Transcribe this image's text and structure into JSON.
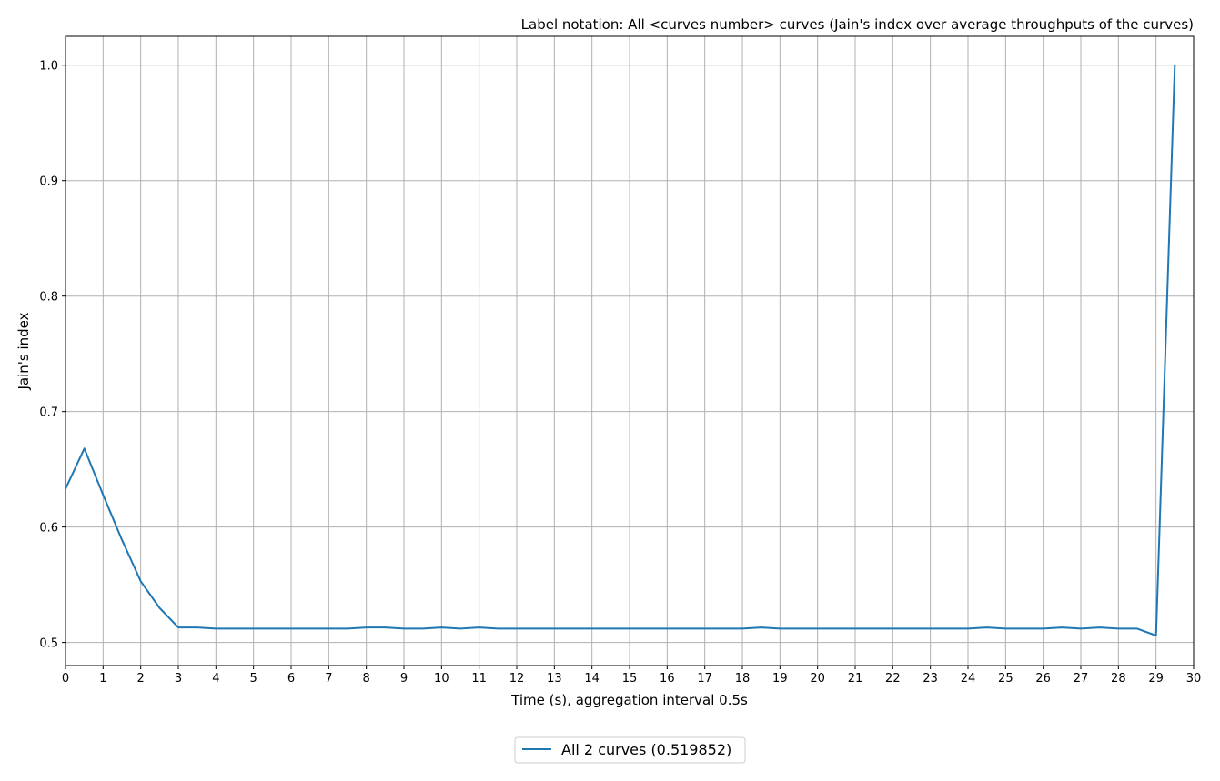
{
  "chart_data": {
    "type": "line",
    "title": "Label notation: All <curves number> curves (Jain's index over average throughputs of the curves)",
    "xlabel": "Time (s), aggregation interval 0.5s",
    "ylabel": "Jain's index",
    "xlim": [
      0,
      30
    ],
    "ylim": [
      0.48,
      1.025
    ],
    "x_ticks": [
      0,
      1,
      2,
      3,
      4,
      5,
      6,
      7,
      8,
      9,
      10,
      11,
      12,
      13,
      14,
      15,
      16,
      17,
      18,
      19,
      20,
      21,
      22,
      23,
      24,
      25,
      26,
      27,
      28,
      29,
      30
    ],
    "x_tick_labels": [
      "0",
      "1",
      "2",
      "3",
      "4",
      "5",
      "6",
      "7",
      "8",
      "9",
      "10",
      "11",
      "12",
      "13",
      "14",
      "15",
      "16",
      "17",
      "18",
      "19",
      "20",
      "21",
      "22",
      "23",
      "24",
      "25",
      "26",
      "27",
      "28",
      "29",
      "30"
    ],
    "y_ticks": [
      0.5,
      0.6,
      0.7,
      0.8,
      0.9,
      1.0
    ],
    "y_tick_labels": [
      "0.5",
      "0.6",
      "0.7",
      "0.8",
      "0.9",
      "1.0"
    ],
    "grid": true,
    "legend_position": "bottom-center, below axes",
    "series": [
      {
        "name": "All 2 curves (0.519852)",
        "color": "#1f77b4",
        "x": [
          0,
          0.5,
          1,
          1.5,
          2,
          2.5,
          3,
          3.5,
          4,
          4.5,
          5,
          5.5,
          6,
          6.5,
          7,
          7.5,
          8,
          8.5,
          9,
          9.5,
          10,
          10.5,
          11,
          11.5,
          12,
          12.5,
          13,
          13.5,
          14,
          14.5,
          15,
          15.5,
          16,
          16.5,
          17,
          17.5,
          18,
          18.5,
          19,
          19.5,
          20,
          20.5,
          21,
          21.5,
          22,
          22.5,
          23,
          23.5,
          24,
          24.5,
          25,
          25.5,
          26,
          26.5,
          27,
          27.5,
          28,
          28.5,
          29,
          29.5
        ],
        "y": [
          0.633,
          0.668,
          0.628,
          0.589,
          0.553,
          0.53,
          0.513,
          0.513,
          0.512,
          0.512,
          0.512,
          0.512,
          0.512,
          0.512,
          0.512,
          0.512,
          0.513,
          0.513,
          0.512,
          0.512,
          0.513,
          0.512,
          0.513,
          0.512,
          0.512,
          0.512,
          0.512,
          0.512,
          0.512,
          0.512,
          0.512,
          0.512,
          0.512,
          0.512,
          0.512,
          0.512,
          0.512,
          0.513,
          0.512,
          0.512,
          0.512,
          0.512,
          0.512,
          0.512,
          0.512,
          0.512,
          0.512,
          0.512,
          0.512,
          0.513,
          0.512,
          0.512,
          0.512,
          0.513,
          0.512,
          0.513,
          0.512,
          0.512,
          0.506,
          1.0
        ]
      }
    ]
  }
}
